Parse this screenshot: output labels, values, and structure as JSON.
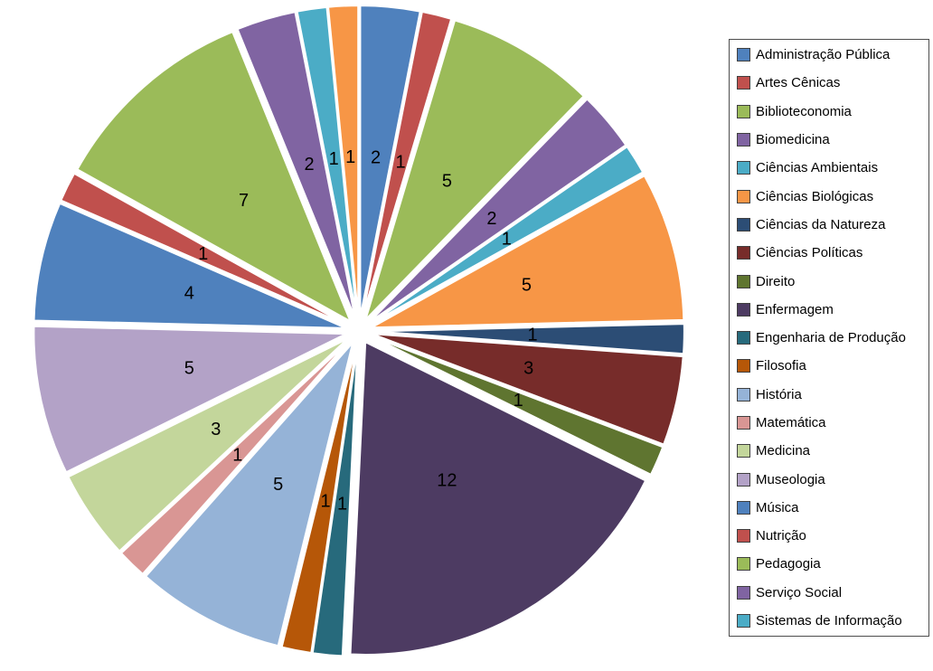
{
  "chart_data": {
    "type": "pie",
    "title": "",
    "style": "exploded",
    "legend_position": "right",
    "data_labels": "values",
    "total": 65,
    "slices": [
      {
        "label": "Administração Pública",
        "value": 2,
        "color": "#4F81BD",
        "in_legend": true
      },
      {
        "label": "Artes Cênicas",
        "value": 1,
        "color": "#C0504D",
        "in_legend": true
      },
      {
        "label": "Biblioteconomia",
        "value": 5,
        "color": "#9BBB59",
        "in_legend": true
      },
      {
        "label": "Biomedicina",
        "value": 2,
        "color": "#8064A2",
        "in_legend": true
      },
      {
        "label": "Ciências Ambientais",
        "value": 1,
        "color": "#4BACC6",
        "in_legend": true
      },
      {
        "label": "Ciências Biológicas",
        "value": 5,
        "color": "#F79646",
        "in_legend": true
      },
      {
        "label": "Ciências da Natureza",
        "value": 1,
        "color": "#2C4D75",
        "in_legend": true
      },
      {
        "label": "Ciências Políticas",
        "value": 3,
        "color": "#772C2A",
        "in_legend": true
      },
      {
        "label": "Direito",
        "value": 1,
        "color": "#5F7530",
        "in_legend": true
      },
      {
        "label": "Enfermagem",
        "value": 12,
        "color": "#4D3B62",
        "in_legend": true
      },
      {
        "label": "Engenharia de Produção",
        "value": 1,
        "color": "#276A7C",
        "in_legend": true
      },
      {
        "label": "Filosofia",
        "value": 1,
        "color": "#B65708",
        "in_legend": true
      },
      {
        "label": "História",
        "value": 5,
        "color": "#95B3D7",
        "in_legend": true
      },
      {
        "label": "Matemática",
        "value": 1,
        "color": "#D99694",
        "in_legend": true
      },
      {
        "label": "Medicina",
        "value": 3,
        "color": "#C3D69B",
        "in_legend": true
      },
      {
        "label": "Museologia",
        "value": 5,
        "color": "#B3A2C7",
        "in_legend": true
      },
      {
        "label": "Música",
        "value": 4,
        "color": "#4F81BD",
        "in_legend": true
      },
      {
        "label": "Nutrição",
        "value": 1,
        "color": "#C0504D",
        "in_legend": true
      },
      {
        "label": "Pedagogia",
        "value": 7,
        "color": "#9BBB59",
        "in_legend": true
      },
      {
        "label": "Serviço Social",
        "value": 2,
        "color": "#8064A2",
        "in_legend": true
      },
      {
        "label": "Sistemas de Informação",
        "value": 1,
        "color": "#4BACC6",
        "in_legend": true
      },
      {
        "label": "",
        "value": 1,
        "color": "#F79646",
        "in_legend": false
      }
    ]
  }
}
